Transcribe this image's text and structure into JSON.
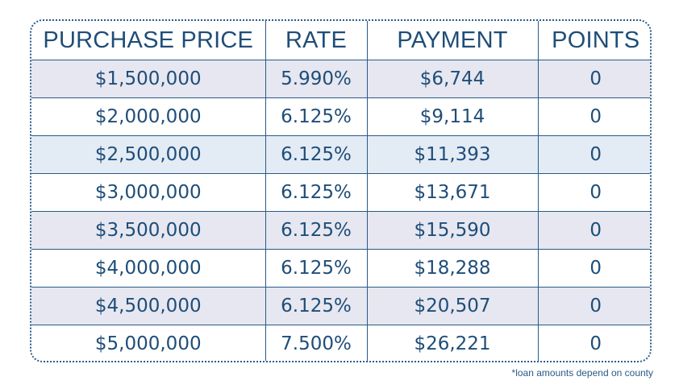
{
  "table": {
    "headers": [
      "PURCHASE PRICE",
      "RATE",
      "PAYMENT",
      "POINTS"
    ],
    "rows": [
      [
        "$1,500,000",
        "5.990%",
        "$6,744",
        "0"
      ],
      [
        "$2,000,000",
        "6.125%",
        "$9,114",
        "0"
      ],
      [
        "$2,500,000",
        "6.125%",
        "$11,393",
        "0"
      ],
      [
        "$3,000,000",
        "6.125%",
        "$13,671",
        "0"
      ],
      [
        "$3,500,000",
        "6.125%",
        "$15,590",
        "0"
      ],
      [
        "$4,000,000",
        "6.125%",
        "$18,288",
        "0"
      ],
      [
        "$4,500,000",
        "6.125%",
        "$20,507",
        "0"
      ],
      [
        "$5,000,000",
        "7.500%",
        "$26,221",
        "0"
      ]
    ],
    "row_colors": [
      "#e6e7f0",
      "#ffffff",
      "#e3ebf5",
      "#ffffff",
      "#e6e7f0",
      "#ffffff",
      "#e6e7f0",
      "#ffffff"
    ]
  },
  "footnote": "*loan amounts depend on county",
  "colors": {
    "text": "#1f4d78",
    "border": "#2a5a88"
  }
}
